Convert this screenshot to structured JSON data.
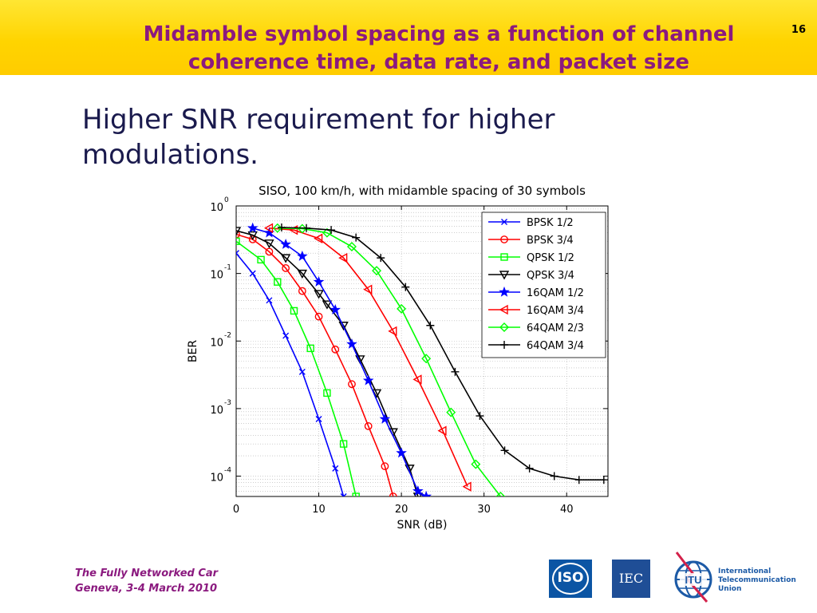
{
  "header": {
    "title": "Midamble symbol spacing as a function of channel coherence time, data rate, and packet size",
    "page_number": "16"
  },
  "subtitle": "Higher SNR requirement for higher modulations.",
  "footer": {
    "line1": "The Fully Networked Car",
    "line2": "Geneva, 3-4 March 2010"
  },
  "logos": {
    "iso": "ISO",
    "iec": "IEC",
    "itu_name": [
      "International",
      "Telecommunication",
      "Union"
    ]
  },
  "chart_data": {
    "type": "line",
    "title": "SISO, 100 km/h, with midamble spacing of 30 symbols",
    "xlabel": "SNR (dB)",
    "ylabel": "BER",
    "xlim": [
      0,
      45
    ],
    "ylim": [
      5e-05,
      1
    ],
    "yscale": "log",
    "xticks": [
      0,
      10,
      20,
      30,
      40
    ],
    "yticks": [
      {
        "value": 1,
        "base": "10",
        "exp": "0"
      },
      {
        "value": 0.1,
        "base": "10",
        "exp": "-1"
      },
      {
        "value": 0.01,
        "base": "10",
        "exp": "-2"
      },
      {
        "value": 0.001,
        "base": "10",
        "exp": "-3"
      },
      {
        "value": 0.0001,
        "base": "10",
        "exp": "-4"
      }
    ],
    "grid": true,
    "legend": "top-right",
    "series": [
      {
        "name": "BPSK 1/2",
        "color": "#0000ff",
        "marker": "x",
        "x": [
          0,
          2,
          4,
          6,
          8,
          10,
          12,
          13
        ],
        "y": [
          0.2,
          0.1,
          0.04,
          0.012,
          0.0035,
          0.0007,
          0.00013,
          5e-05
        ]
      },
      {
        "name": "BPSK 3/4",
        "color": "#ff0000",
        "marker": "circle",
        "x": [
          0,
          2,
          4,
          6,
          8,
          10,
          12,
          14,
          16,
          18,
          19
        ],
        "y": [
          0.38,
          0.32,
          0.21,
          0.12,
          0.055,
          0.023,
          0.0075,
          0.0023,
          0.00055,
          0.00014,
          5e-05
        ]
      },
      {
        "name": "QPSK 1/2",
        "color": "#00ff00",
        "marker": "square",
        "x": [
          0,
          3,
          5,
          7,
          9,
          11,
          13,
          14.5
        ],
        "y": [
          0.3,
          0.16,
          0.075,
          0.028,
          0.0078,
          0.0017,
          0.0003,
          5e-05
        ]
      },
      {
        "name": "QPSK 3/4",
        "color": "#000000",
        "marker": "triangle-down",
        "x": [
          0,
          2,
          4,
          6,
          8,
          10,
          11,
          13,
          15,
          17,
          19,
          21,
          22
        ],
        "y": [
          0.43,
          0.37,
          0.28,
          0.17,
          0.1,
          0.05,
          0.035,
          0.017,
          0.0054,
          0.0017,
          0.00045,
          0.00013,
          5e-05
        ]
      },
      {
        "name": "16QAM 1/2",
        "color": "#0000ff",
        "marker": "star",
        "x": [
          2,
          4,
          6,
          8,
          10,
          12,
          14,
          16,
          18,
          20,
          22,
          23
        ],
        "y": [
          0.47,
          0.4,
          0.27,
          0.18,
          0.075,
          0.029,
          0.009,
          0.0026,
          0.0007,
          0.00022,
          6e-05,
          5e-05
        ]
      },
      {
        "name": "16QAM 3/4",
        "color": "#ff0000",
        "marker": "triangle-left",
        "x": [
          4,
          7,
          10,
          13,
          16,
          19,
          22,
          25,
          28
        ],
        "y": [
          0.47,
          0.44,
          0.33,
          0.17,
          0.058,
          0.014,
          0.0027,
          0.00047,
          7e-05
        ]
      },
      {
        "name": "64QAM 2/3",
        "color": "#00ff00",
        "marker": "diamond",
        "x": [
          5,
          8,
          11,
          14,
          17,
          20,
          23,
          26,
          29,
          32
        ],
        "y": [
          0.47,
          0.46,
          0.4,
          0.25,
          0.11,
          0.03,
          0.0055,
          0.00088,
          0.00015,
          5e-05
        ]
      },
      {
        "name": "64QAM 3/4",
        "color": "#000000",
        "marker": "plus",
        "x": [
          5.5,
          8.5,
          11.5,
          14.5,
          17.5,
          20.5,
          23.5,
          26.5,
          29.5,
          32.5,
          35.5,
          38.5,
          41.5,
          44.5
        ],
        "y": [
          0.48,
          0.47,
          0.44,
          0.34,
          0.17,
          0.063,
          0.017,
          0.0035,
          0.00078,
          0.00024,
          0.00013,
          0.0001,
          8.8e-05,
          8.8e-05
        ]
      }
    ]
  }
}
